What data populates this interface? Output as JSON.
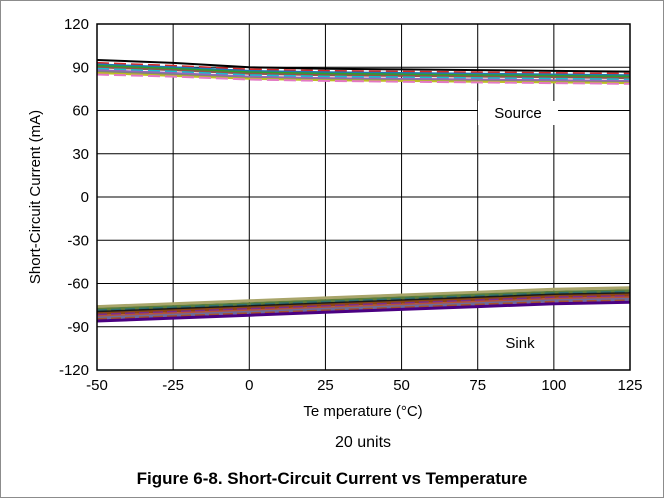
{
  "chart_data": {
    "type": "line",
    "xlabel": "Te mperature (°C)",
    "ylabel": "Short-Circuit Current (mA)",
    "x_ticks": [
      "-50",
      "-25",
      "0",
      "25",
      "50",
      "75",
      "100",
      "125"
    ],
    "y_ticks": [
      "120",
      "90",
      "60",
      "30",
      "0",
      "-30",
      "-60",
      "-90",
      "-120"
    ],
    "xlim": [
      -50,
      125
    ],
    "ylim": [
      -120,
      120
    ],
    "grid": true,
    "units_note": "20 units",
    "annotations": [
      "Source",
      "Sink"
    ],
    "x": [
      -50,
      -25,
      0,
      25,
      50,
      75,
      100,
      125
    ],
    "series": [
      {
        "values": [
          95,
          93,
          90,
          89,
          88.5,
          88,
          87.5,
          87
        ]
      },
      {
        "values": [
          93,
          91,
          88.5,
          87.5,
          87,
          86.5,
          86,
          85.5
        ]
      },
      {
        "values": [
          92,
          90,
          87.5,
          86.5,
          86,
          85.5,
          85,
          84.5
        ]
      },
      {
        "values": [
          91,
          89,
          86.5,
          85.5,
          85,
          84.5,
          84,
          83.5
        ]
      },
      {
        "values": [
          90,
          88,
          85.5,
          84.5,
          84,
          83.5,
          83,
          82.5
        ]
      },
      {
        "values": [
          89,
          87,
          84.5,
          83.5,
          83,
          82.5,
          82,
          81.5
        ]
      },
      {
        "values": [
          88,
          86,
          83.5,
          82.5,
          82,
          81.5,
          81,
          80.5
        ]
      },
      {
        "values": [
          87,
          85,
          82.5,
          81.5,
          81,
          80.5,
          80,
          79.5
        ]
      },
      {
        "values": [
          86,
          84,
          82,
          81,
          80.5,
          80,
          79.5,
          79
        ]
      },
      {
        "values": [
          85,
          83.5,
          81.5,
          80.5,
          80,
          79.5,
          79,
          78.5
        ]
      },
      {
        "values": [
          -76,
          -74,
          -72,
          -70,
          -68,
          -66,
          -64,
          -63
        ]
      },
      {
        "values": [
          -78,
          -76,
          -74,
          -72,
          -70,
          -68,
          -66,
          -65
        ]
      },
      {
        "values": [
          -79,
          -77,
          -75,
          -73,
          -71,
          -69,
          -67,
          -66
        ]
      },
      {
        "values": [
          -80,
          -78,
          -76,
          -74,
          -72,
          -70,
          -68,
          -67
        ]
      },
      {
        "values": [
          -81,
          -79,
          -77,
          -75,
          -73,
          -71,
          -69,
          -68
        ]
      },
      {
        "values": [
          -82,
          -80,
          -78,
          -76,
          -74,
          -72,
          -70,
          -69
        ]
      },
      {
        "values": [
          -83,
          -81,
          -79,
          -77,
          -75,
          -73,
          -71,
          -70
        ]
      },
      {
        "values": [
          -84,
          -82,
          -80,
          -78,
          -76,
          -74,
          -72,
          -71
        ]
      },
      {
        "values": [
          -85,
          -83,
          -81,
          -79,
          -77,
          -75,
          -73,
          -72
        ]
      },
      {
        "values": [
          -86,
          -84,
          -82,
          -80,
          -78,
          -76,
          -74,
          -73
        ]
      }
    ]
  },
  "caption": "Figure 6-8. Short-Circuit Current vs Temperature",
  "colors": [
    "#000000",
    "#d62728",
    "#1f77b4",
    "#2ca02c",
    "#8c564b",
    "#17becf",
    "#9467bd",
    "#7f7f7f",
    "#bcbd22",
    "#e377c2",
    "#a9a56a",
    "#5a7d3a",
    "#2e6f6f",
    "#1a1a1a",
    "#8b4513",
    "#7b2d8b",
    "#b5523b",
    "#6b6b9b",
    "#a0522d",
    "#4b0082"
  ]
}
